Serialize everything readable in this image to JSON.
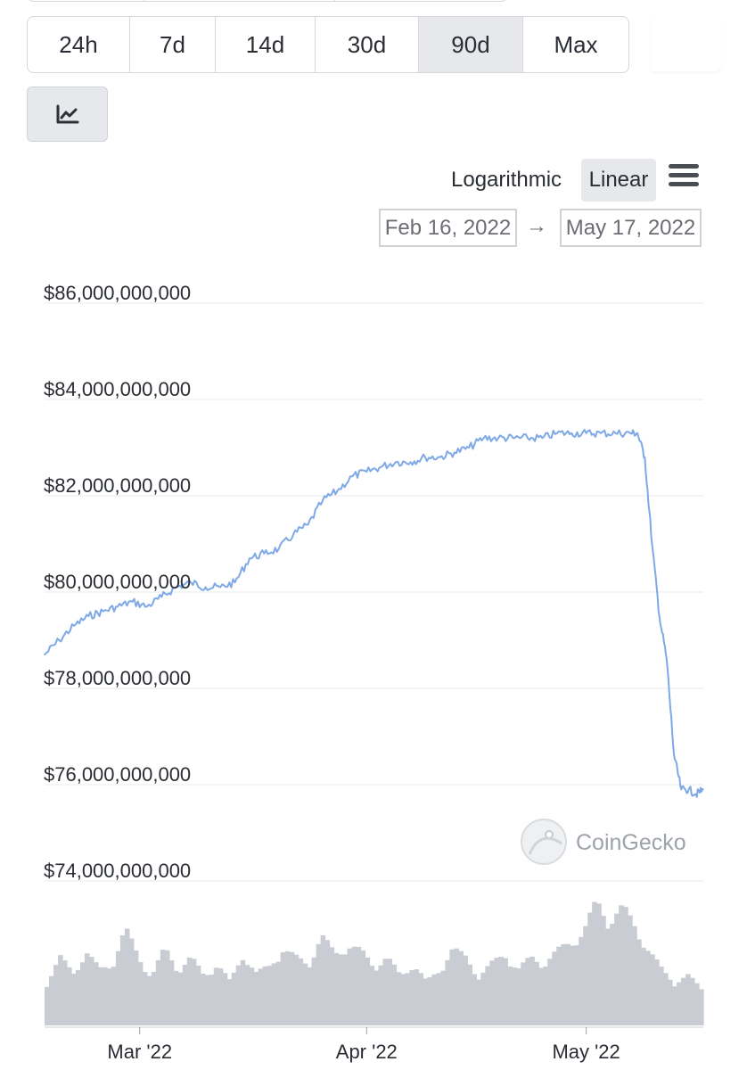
{
  "range_tabs": [
    "24h",
    "7d",
    "14d",
    "30d",
    "90d",
    "Max"
  ],
  "active_range": "90d",
  "scale": {
    "log_label": "Logarithmic",
    "linear_label": "Linear",
    "active": "Linear"
  },
  "date_range": {
    "from": "Feb 16, 2022",
    "arrow": "→",
    "to": "May 17, 2022"
  },
  "watermark": "CoinGecko",
  "colors": {
    "line": "#7fa9e6",
    "volume": "#c9ccd3",
    "grid": "#e7e8ea",
    "active_bg": "#e6e8ec"
  },
  "chart_data": {
    "type": "line",
    "ylabel": "",
    "ylim": [
      74000000000,
      86000000000
    ],
    "y_ticks": [
      74000000000,
      76000000000,
      78000000000,
      80000000000,
      82000000000,
      84000000000,
      86000000000
    ],
    "y_tick_labels": [
      "$74,000,000,000",
      "$76,000,000,000",
      "$78,000,000,000",
      "$80,000,000,000",
      "$82,000,000,000",
      "$84,000,000,000",
      "$86,000,000,000"
    ],
    "x_range": [
      "2022-02-16",
      "2022-05-17"
    ],
    "x_ticks": [
      "2022-03-01",
      "2022-04-01",
      "2022-05-01"
    ],
    "x_tick_labels": [
      "Mar '22",
      "Apr '22",
      "May '22"
    ],
    "grid": true,
    "series": [
      {
        "x": [
          "2022-02-16",
          "2022-02-18",
          "2022-02-20",
          "2022-02-22",
          "2022-02-24",
          "2022-02-26",
          "2022-02-28",
          "2022-03-02",
          "2022-03-04",
          "2022-03-06",
          "2022-03-08",
          "2022-03-10",
          "2022-03-12",
          "2022-03-14",
          "2022-03-16",
          "2022-03-18",
          "2022-03-20",
          "2022-03-22",
          "2022-03-24",
          "2022-03-26",
          "2022-03-28",
          "2022-03-30",
          "2022-04-01",
          "2022-04-03",
          "2022-04-05",
          "2022-04-07",
          "2022-04-09",
          "2022-04-11",
          "2022-04-13",
          "2022-04-15",
          "2022-04-17",
          "2022-04-19",
          "2022-04-21",
          "2022-04-23",
          "2022-04-25",
          "2022-04-27",
          "2022-04-29",
          "2022-05-01",
          "2022-05-03",
          "2022-05-05",
          "2022-05-07",
          "2022-05-08",
          "2022-05-09",
          "2022-05-10",
          "2022-05-11",
          "2022-05-12",
          "2022-05-13",
          "2022-05-14",
          "2022-05-15",
          "2022-05-16",
          "2022-05-17"
        ],
        "values": [
          78700000000,
          79000000000,
          79300000000,
          79500000000,
          79600000000,
          79700000000,
          79800000000,
          79700000000,
          79900000000,
          80100000000,
          80200000000,
          80100000000,
          80100000000,
          80200000000,
          80700000000,
          80800000000,
          80900000000,
          81200000000,
          81400000000,
          81900000000,
          82100000000,
          82400000000,
          82500000000,
          82600000000,
          82700000000,
          82700000000,
          82800000000,
          82800000000,
          82900000000,
          83000000000,
          83200000000,
          83200000000,
          83200000000,
          83200000000,
          83200000000,
          83300000000,
          83300000000,
          83300000000,
          83300000000,
          83300000000,
          83300000000,
          83300000000,
          82800000000,
          81000000000,
          79500000000,
          78600000000,
          76600000000,
          75900000000,
          75900000000,
          75800000000,
          75900000000
        ]
      }
    ],
    "volume": [
      0.35,
      0.55,
      0.42,
      0.6,
      0.45,
      0.5,
      0.78,
      0.55,
      0.4,
      0.62,
      0.45,
      0.55,
      0.4,
      0.5,
      0.35,
      0.58,
      0.42,
      0.48,
      0.62,
      0.55,
      0.5,
      0.72,
      0.58,
      0.65,
      0.6,
      0.48,
      0.55,
      0.4,
      0.5,
      0.35,
      0.45,
      0.62,
      0.55,
      0.4,
      0.5,
      0.58,
      0.45,
      0.55,
      0.5,
      0.6,
      0.68,
      0.75,
      1.0,
      0.85,
      0.95,
      0.8,
      0.6,
      0.45,
      0.35,
      0.4,
      0.3
    ]
  }
}
